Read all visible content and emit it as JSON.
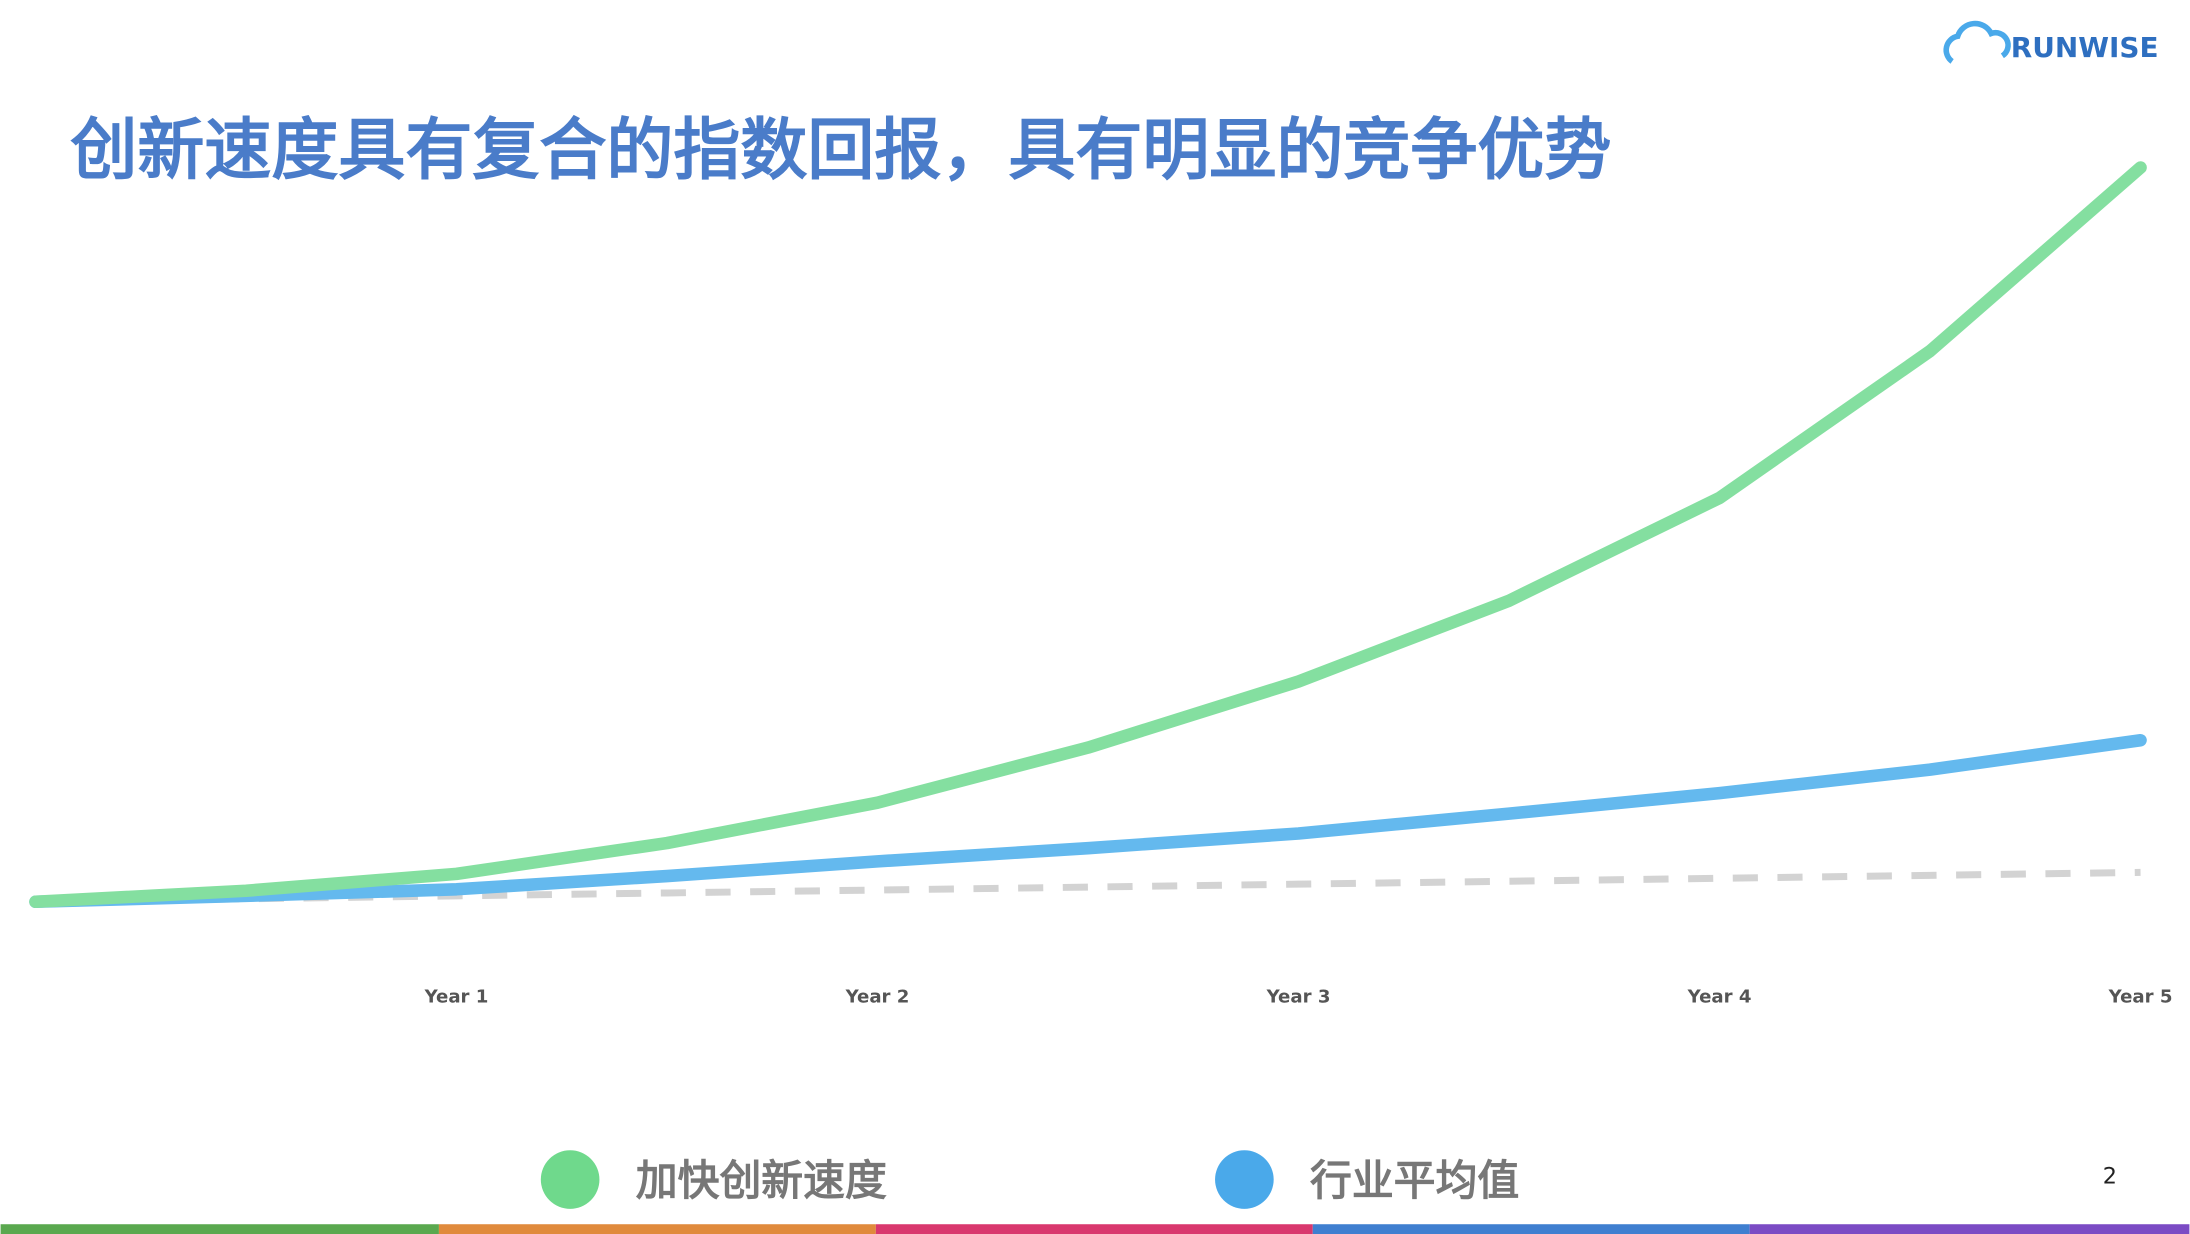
{
  "logo": "RUNWISE",
  "page_number": "2",
  "chart_data": {
    "type": "line",
    "title": "创新速度具有复合的指数回报，具有明显的竞争优势",
    "x": [
      0,
      0.5,
      1,
      1.5,
      2,
      2.5,
      3,
      3.5,
      4,
      4.5,
      5
    ],
    "xlim": [
      0,
      5
    ],
    "xticks": [
      {
        "value": 1,
        "label": "Year 1"
      },
      {
        "value": 2,
        "label": "Year 2"
      },
      {
        "value": 3,
        "label": "Year 3"
      },
      {
        "value": 4,
        "label": "Year 4"
      },
      {
        "value": 5,
        "label": "Year 5"
      }
    ],
    "ylim": [
      0,
      100
    ],
    "series": [
      {
        "name": "加快创新速度",
        "color": "#84dfa0",
        "legend_color": "#6fd98c",
        "values": [
          0,
          1.5,
          3.8,
          8,
          13.5,
          21,
          30,
          41,
          55,
          75,
          100
        ]
      },
      {
        "name": "行业平均值",
        "color": "#64b9ee",
        "legend_color": "#4aa9ea",
        "values": [
          0,
          0.8,
          1.7,
          3.5,
          5.5,
          7.3,
          9.3,
          12,
          14.8,
          18,
          22
        ]
      },
      {
        "color": "#d3d3d3",
        "dashed": true,
        "values": [
          0,
          0.4,
          0.8,
          1.2,
          1.6,
          2,
          2.4,
          2.8,
          3.2,
          3.6,
          4
        ]
      }
    ]
  }
}
